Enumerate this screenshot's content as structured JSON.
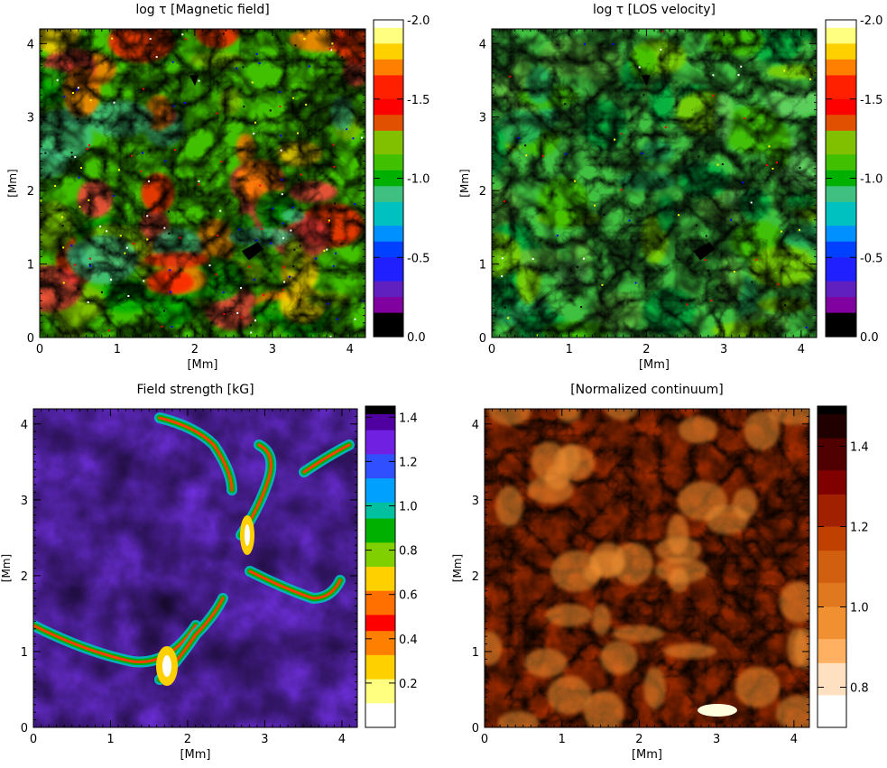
{
  "chart_data": [
    {
      "type": "heatmap",
      "title": "log τ [Magnetic field]",
      "xlabel": "[Mm]",
      "ylabel": "[Mm]",
      "xlim": [
        0,
        4.2
      ],
      "ylim": [
        0,
        4.2
      ],
      "x_ticks": [
        "0",
        "1",
        "2",
        "3",
        "4"
      ],
      "y_ticks": [
        "0",
        "1",
        "2",
        "3",
        "4"
      ],
      "colorbar": {
        "range": [
          0.0,
          -2.0
        ],
        "tick_labels": [
          "-2.0",
          "-1.5",
          "-1.0",
          "-0.5",
          "0.0"
        ],
        "tick_values": [
          -2.0,
          -1.5,
          -1.0,
          -0.5,
          0.0
        ]
      }
    },
    {
      "type": "heatmap",
      "title": "log τ [LOS velocity]",
      "xlabel": "[Mm]",
      "ylabel": "[Mm]",
      "xlim": [
        0,
        4.2
      ],
      "ylim": [
        0,
        4.2
      ],
      "x_ticks": [
        "0",
        "1",
        "2",
        "3",
        "4"
      ],
      "y_ticks": [
        "0",
        "1",
        "2",
        "3",
        "4"
      ],
      "colorbar": {
        "range": [
          0.0,
          -2.0
        ],
        "tick_labels": [
          "-2.0",
          "-1.5",
          "-1.0",
          "-0.5",
          "0.0"
        ],
        "tick_values": [
          -2.0,
          -1.5,
          -1.0,
          -0.5,
          0.0
        ]
      }
    },
    {
      "type": "heatmap",
      "title": "Field strength [kG]",
      "xlabel": "[Mm]",
      "ylabel": "[Mm]",
      "xlim": [
        0,
        4.2
      ],
      "ylim": [
        0,
        4.2
      ],
      "x_ticks": [
        "0",
        "1",
        "2",
        "3",
        "4"
      ],
      "y_ticks": [
        "0",
        "1",
        "2",
        "3",
        "4"
      ],
      "colorbar": {
        "range": [
          0.0,
          1.45
        ],
        "tick_labels": [
          "1.4",
          "1.2",
          "1.0",
          "0.8",
          "0.6",
          "0.4",
          "0.2"
        ],
        "tick_values": [
          1.4,
          1.2,
          1.0,
          0.8,
          0.6,
          0.4,
          0.2
        ]
      }
    },
    {
      "type": "heatmap",
      "title": "[Normalized continuum]",
      "xlabel": "[Mm]",
      "ylabel": "[Mm]",
      "xlim": [
        0,
        4.2
      ],
      "ylim": [
        0,
        4.2
      ],
      "x_ticks": [
        "0",
        "1",
        "2",
        "3",
        "4"
      ],
      "y_ticks": [
        "0",
        "1",
        "2",
        "3",
        "4"
      ],
      "colorbar": {
        "range": [
          0.7,
          1.5
        ],
        "tick_labels": [
          "1.4",
          "1.2",
          "1.0",
          "0.8"
        ],
        "tick_values": [
          1.4,
          1.2,
          1.0,
          0.8
        ]
      }
    }
  ]
}
